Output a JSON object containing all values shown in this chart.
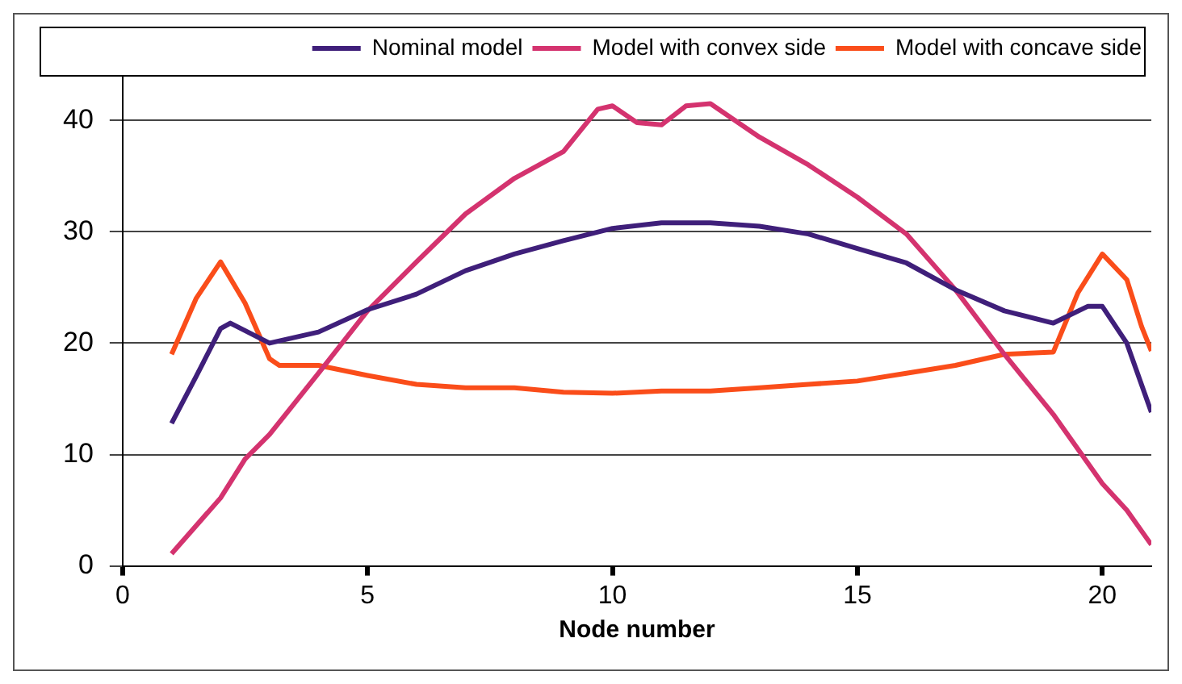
{
  "chart_data": {
    "type": "line",
    "xlabel": "Node number",
    "xlim": [
      0,
      21
    ],
    "xticks": [
      0,
      5,
      10,
      15,
      20
    ],
    "ylim": [
      0,
      44
    ],
    "yticks": [
      0,
      10,
      20,
      30,
      40
    ],
    "grid": "y",
    "legend": "top right",
    "marker": "none",
    "line_style": "solid",
    "series": [
      {
        "name": "Nominal model",
        "color": "#3f1f7a",
        "x": [
          1,
          1.5,
          2,
          2.2,
          3,
          4,
          5,
          6,
          7,
          8,
          9,
          10,
          11,
          12,
          13,
          14,
          15,
          16,
          17,
          18,
          19,
          19.7,
          20,
          20.5,
          21
        ],
        "values": [
          12.8,
          17,
          21.3,
          21.8,
          20,
          21,
          23,
          24.4,
          26.5,
          28,
          29.2,
          30.3,
          30.8,
          30.8,
          30.5,
          29.8,
          28.5,
          27.2,
          24.8,
          22.9,
          21.8,
          23.3,
          23.3,
          20,
          13.8
        ]
      },
      {
        "name": "Model with convex side",
        "color": "#d4336f",
        "x": [
          1,
          2,
          2.5,
          3,
          4,
          5,
          6,
          7,
          8,
          9,
          9.7,
          10,
          10.5,
          11,
          11.5,
          12,
          13,
          14,
          15,
          16,
          17,
          18,
          19,
          20,
          20.5,
          21
        ],
        "values": [
          1.1,
          6.1,
          9.6,
          11.8,
          17.3,
          22.9,
          27.3,
          31.6,
          34.8,
          37.2,
          41,
          41.3,
          39.8,
          39.6,
          41.3,
          41.5,
          38.5,
          36,
          33.1,
          29.8,
          24.8,
          19,
          13.6,
          7.4,
          5,
          1.9
        ]
      },
      {
        "name": "Model with concave side",
        "color": "#fa4d1a",
        "x": [
          1,
          1.5,
          2,
          2.5,
          3,
          3.2,
          4,
          5,
          6,
          7,
          8,
          9,
          10,
          11,
          12,
          13,
          14,
          15,
          16,
          17,
          18,
          19,
          19.5,
          20,
          20.5,
          20.8,
          21
        ],
        "values": [
          19,
          24,
          27.3,
          23.6,
          18.6,
          18,
          18,
          17.1,
          16.3,
          16,
          16,
          15.6,
          15.5,
          15.7,
          15.7,
          16,
          16.3,
          16.6,
          17.3,
          18,
          19,
          19.2,
          24.5,
          28,
          25.7,
          21.5,
          19.3
        ]
      }
    ]
  }
}
